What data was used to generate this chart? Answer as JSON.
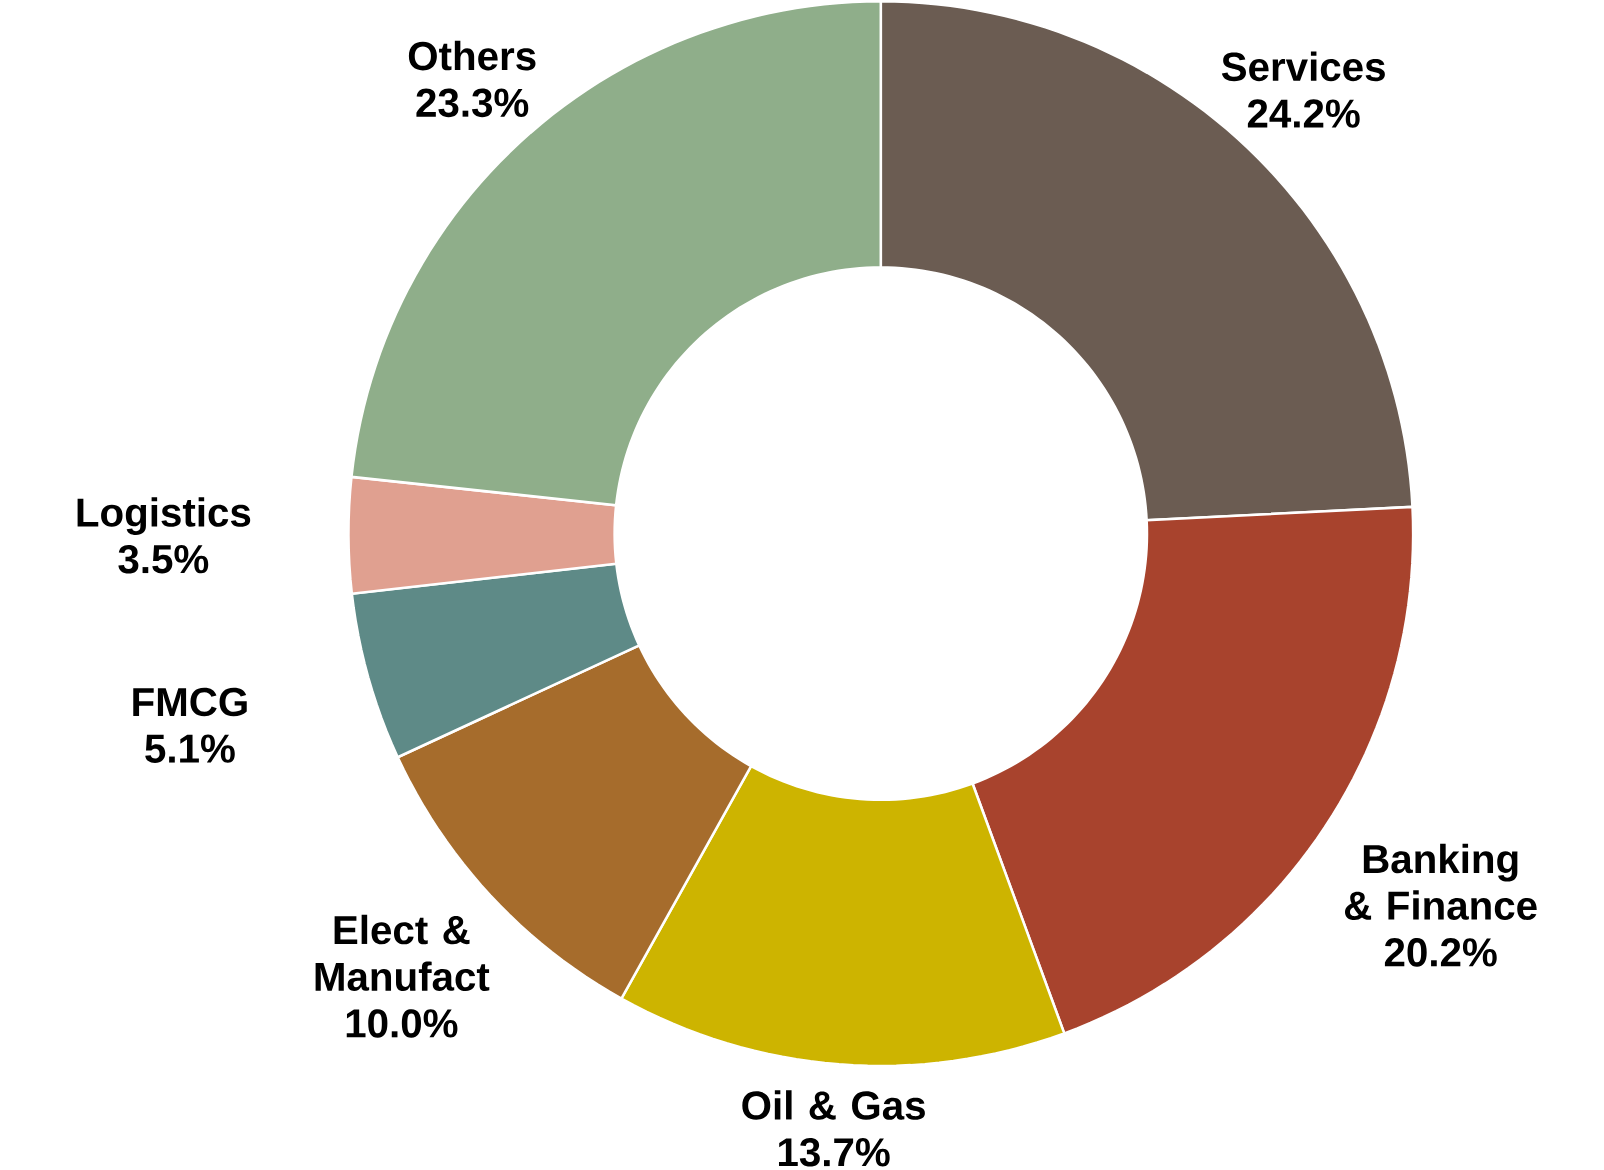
{
  "chart_data": {
    "type": "donut",
    "categories": [
      "Services",
      "Banking & Finance",
      "Oil & Gas",
      "Elect & Manufact",
      "FMCG",
      "Logistics",
      "Others"
    ],
    "values": [
      24.2,
      20.2,
      13.7,
      10.0,
      5.1,
      3.5,
      23.3
    ],
    "value_labels": [
      "24.2%",
      "20.2%",
      "13.7%",
      "10.0%",
      "5.1%",
      "3.5%",
      "23.3%"
    ],
    "colors": [
      "#6b5c52",
      "#a8432d",
      "#cdb400",
      "#a66c2c",
      "#5e8a87",
      "#e0a090",
      "#8fae8a"
    ]
  }
}
